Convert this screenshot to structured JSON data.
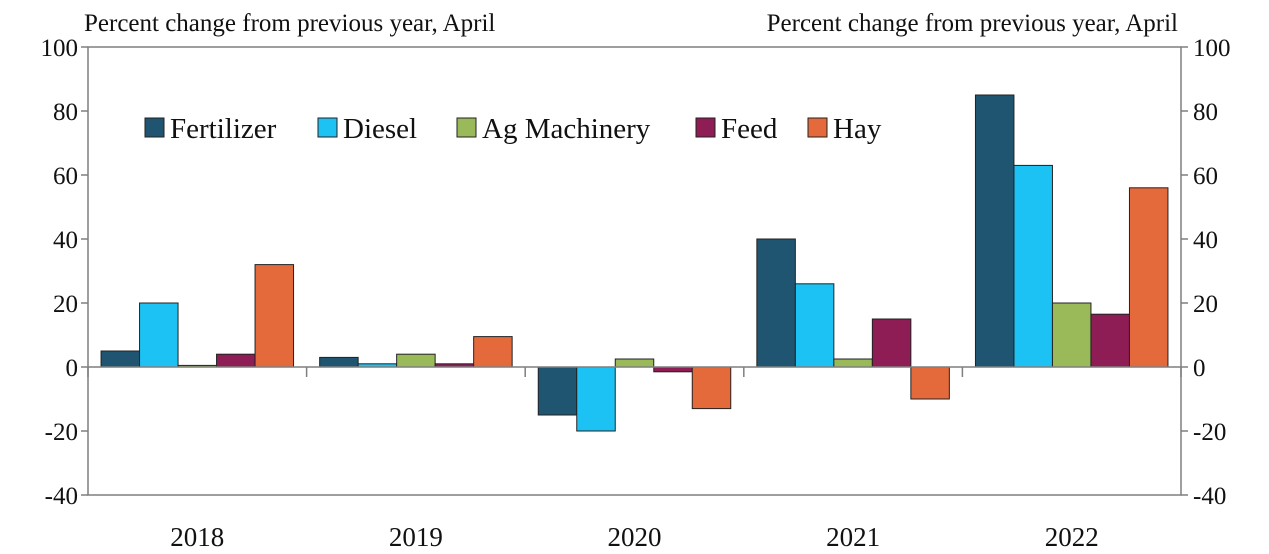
{
  "chart_data": {
    "type": "bar",
    "left_axis_title": "Percent change from previous year, April",
    "right_axis_title": "Percent change from previous year, April",
    "categories": [
      "2018",
      "2019",
      "2020",
      "2021",
      "2022"
    ],
    "ylim": [
      -40,
      100
    ],
    "yticks": [
      "100",
      "80",
      "60",
      "40",
      "20",
      "0",
      "-20",
      "-40"
    ],
    "ytick_values": [
      100,
      80,
      60,
      40,
      20,
      0,
      -20,
      -40
    ],
    "grid": false,
    "legend_position": "top-left",
    "series": [
      {
        "name": "Fertilizer",
        "color": "#1f5570",
        "values": [
          5,
          3,
          -15,
          40,
          85
        ]
      },
      {
        "name": "Diesel",
        "color": "#1cc2f3",
        "values": [
          20,
          1,
          -20,
          26,
          63
        ]
      },
      {
        "name": "Ag Machinery",
        "color": "#9aba59",
        "values": [
          0.5,
          4,
          2.5,
          2.5,
          20
        ]
      },
      {
        "name": "Feed",
        "color": "#8e1c55",
        "values": [
          4,
          1,
          -1.5,
          15,
          16.5
        ]
      },
      {
        "name": "Hay",
        "color": "#e56a3b",
        "values": [
          32,
          9.5,
          -13,
          -10,
          56
        ]
      }
    ]
  }
}
